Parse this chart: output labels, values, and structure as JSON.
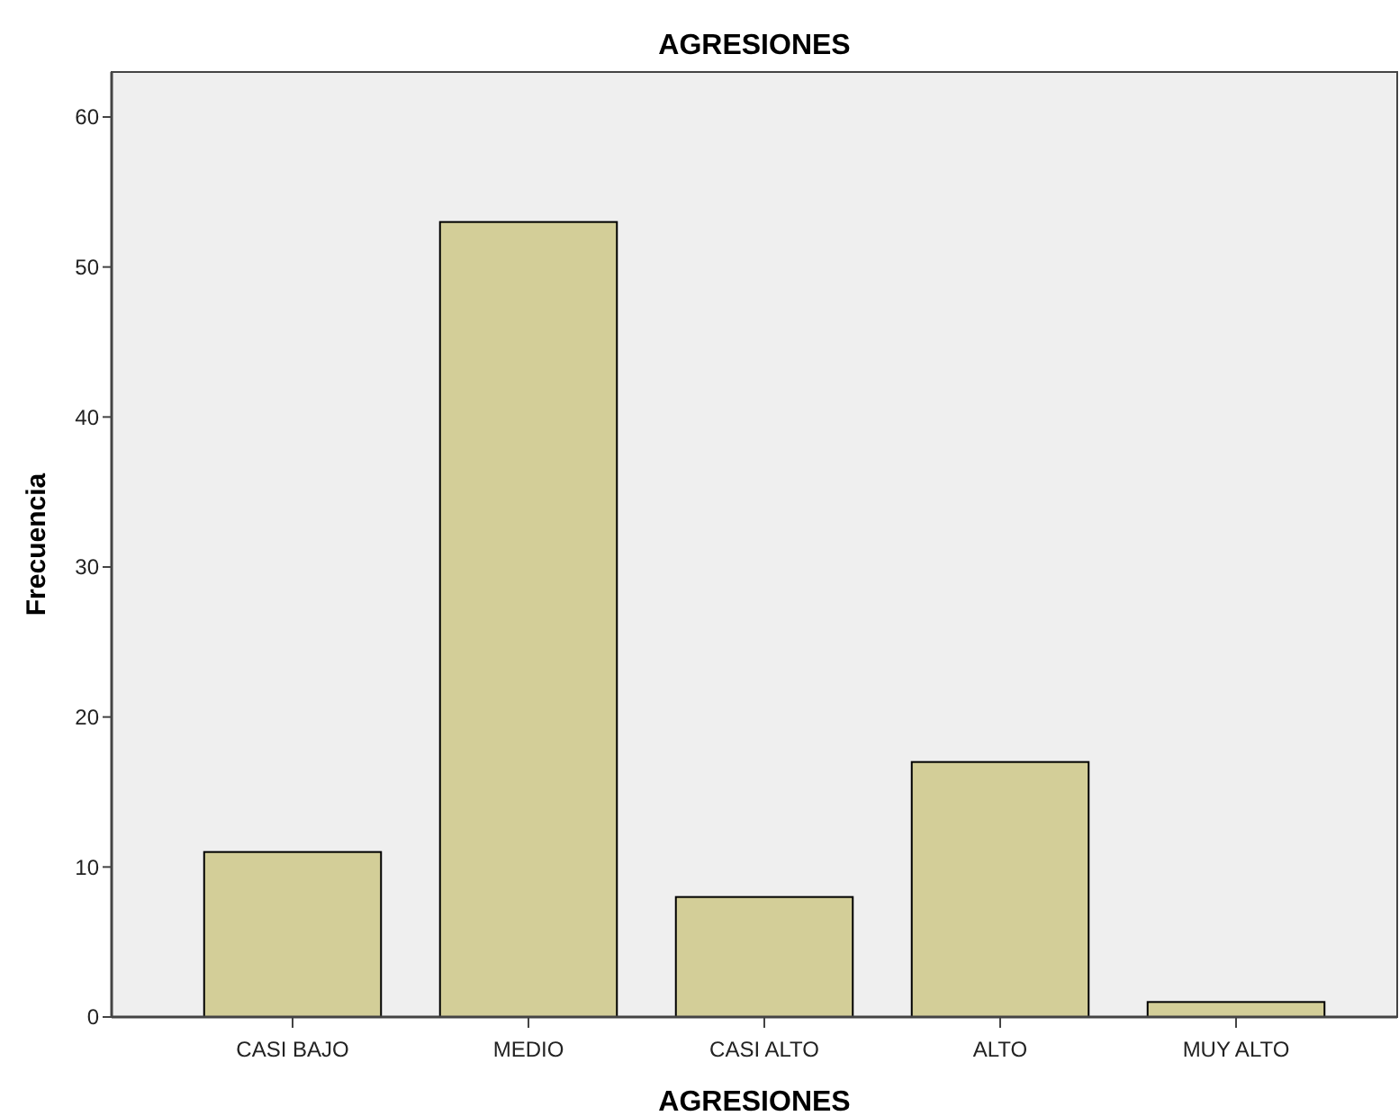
{
  "chart_data": {
    "type": "bar",
    "title": "AGRESIONES",
    "xlabel": "AGRESIONES",
    "ylabel": "Frecuencia",
    "categories": [
      "CASI BAJO",
      "MEDIO",
      "CASI ALTO",
      "ALTO",
      "MUY ALTO"
    ],
    "values": [
      11,
      53,
      8,
      17,
      1
    ],
    "color": "#d3ce98",
    "ylim": [
      0,
      63
    ],
    "yticks": [
      0,
      10,
      20,
      30,
      40,
      50,
      60
    ],
    "grid": false
  }
}
